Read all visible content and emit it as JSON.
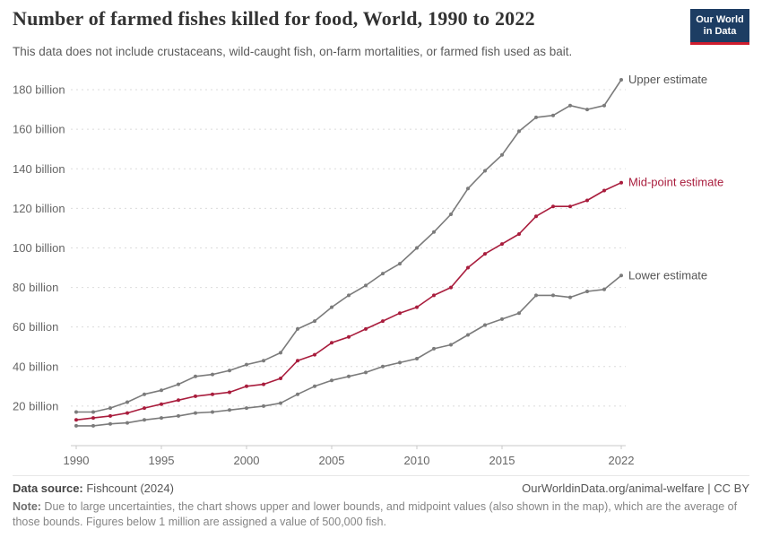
{
  "header": {
    "title": "Number of farmed fishes killed for food, World, 1990 to 2022",
    "subtitle": "This data does not include crustaceans, wild-caught fish, on-farm mortalities, or farmed fish used as bait.",
    "logo": {
      "line1": "Our World",
      "line2": "in Data"
    }
  },
  "chart_data": {
    "type": "line",
    "title": "Number of farmed fishes killed for food, World, 1990 to 2022",
    "x": [
      1990,
      1991,
      1992,
      1993,
      1994,
      1995,
      1996,
      1997,
      1998,
      1999,
      2000,
      2001,
      2002,
      2003,
      2004,
      2005,
      2006,
      2007,
      2008,
      2009,
      2010,
      2011,
      2012,
      2013,
      2014,
      2015,
      2016,
      2017,
      2018,
      2019,
      2020,
      2021,
      2022
    ],
    "series": [
      {
        "name": "Upper estimate",
        "color": "#7b7b7b",
        "label_color": "#555555",
        "values": [
          17,
          17,
          19,
          22,
          26,
          28,
          31,
          35,
          36,
          38,
          41,
          43,
          47,
          59,
          63,
          70,
          76,
          81,
          87,
          92,
          100,
          108,
          117,
          130,
          139,
          147,
          159,
          166,
          167,
          172,
          170,
          172,
          185
        ]
      },
      {
        "name": "Mid-point estimate",
        "color": "#a91d3d",
        "label_color": "#a91d3d",
        "values": [
          13,
          14,
          15,
          16.5,
          19,
          21,
          23,
          25,
          26,
          27,
          30,
          31,
          34,
          43,
          46,
          52,
          55,
          59,
          63,
          67,
          70,
          76,
          80,
          90,
          97,
          102,
          107,
          116,
          121,
          121,
          124,
          129,
          133
        ]
      },
      {
        "name": "Lower estimate",
        "color": "#7b7b7b",
        "label_color": "#555555",
        "values": [
          10,
          10,
          11,
          11.5,
          13,
          14,
          15,
          16.5,
          17,
          18,
          19,
          20,
          21.5,
          26,
          30,
          33,
          35,
          37,
          40,
          42,
          44,
          49,
          51,
          56,
          61,
          64,
          67,
          76,
          76,
          75,
          78,
          79,
          86
        ]
      }
    ],
    "ylim": [
      0,
      190
    ],
    "yticks": [
      20,
      40,
      60,
      80,
      100,
      120,
      140,
      160,
      180
    ],
    "ytick_suffix": " billion",
    "xticks": [
      1990,
      1995,
      2000,
      2005,
      2010,
      2015,
      2022
    ],
    "grid": "dashed-horizontal",
    "legend_position": "line-end-labels"
  },
  "footer": {
    "source_label": "Data source:",
    "source_value": " Fishcount (2024)",
    "link": "OurWorldinData.org/animal-welfare | CC BY",
    "note_label": "Note:",
    "note_text": " Due to large uncertainties, the chart shows upper and lower bounds, and midpoint values (also shown in the map), which are the average of those bounds. Figures below 1 million are assigned a value of 500,000 fish."
  }
}
